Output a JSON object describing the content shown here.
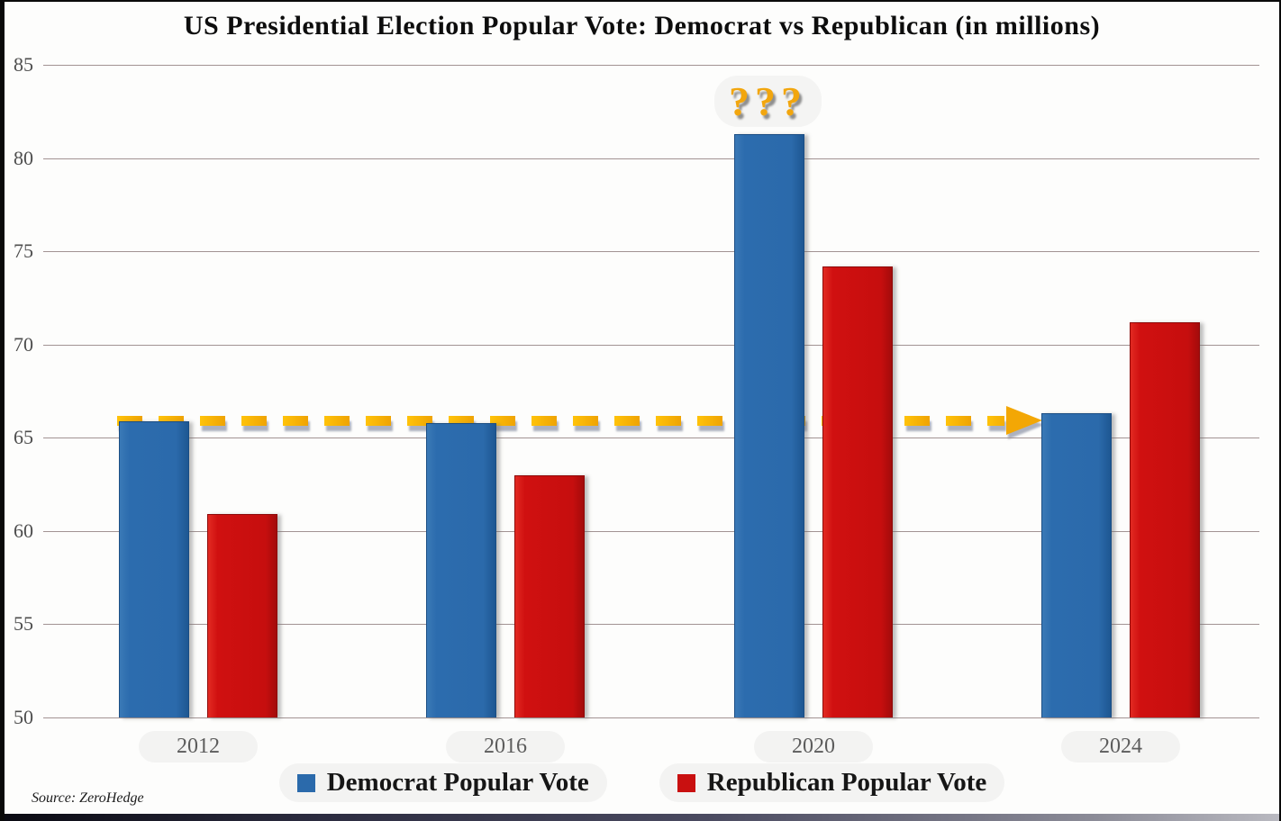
{
  "title": "US Presidential Election Popular Vote: Democrat vs Republican (in millions)",
  "source": "Source: ZeroHedge",
  "annotations": {
    "question_marks": "???",
    "dashed_line": {
      "value": 65.9,
      "color": "#f5b400",
      "description": "dashed arrow at ~66 million level pointing right to the 2024 Democrat bar"
    }
  },
  "colors": {
    "democrat": "#2b6aab",
    "republican": "#c91010",
    "grid": "#a29393",
    "annotation": "#f3a705"
  },
  "chart_data": {
    "type": "bar",
    "title": "US Presidential Election Popular Vote: Democrat vs Republican (in millions)",
    "categories": [
      "2012",
      "2016",
      "2020",
      "2024"
    ],
    "series": [
      {
        "name": "Democrat Popular Vote",
        "color": "#2b6aab",
        "values": [
          65.9,
          65.8,
          81.3,
          66.3
        ]
      },
      {
        "name": "Republican Popular Vote",
        "color": "#c91010",
        "values": [
          60.9,
          63.0,
          74.2,
          71.2
        ]
      }
    ],
    "xlabel": "",
    "ylabel": "",
    "ylim": [
      50,
      85
    ],
    "yticks": [
      85,
      80,
      75,
      70,
      65,
      60,
      55,
      50
    ],
    "grid": true,
    "legend_position": "bottom"
  }
}
